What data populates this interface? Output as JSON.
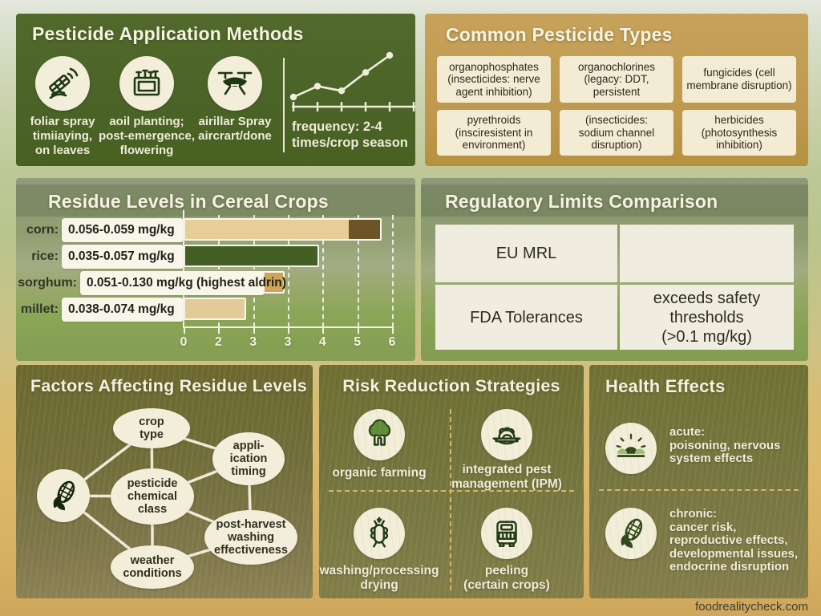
{
  "watermark": "foodrealitycheck.com",
  "application_methods": {
    "title": "Pesticide Application Methods",
    "methods": [
      {
        "icon": "foliar-spray-icon",
        "label": "foliar spray\ntimiiaying,\non leaves"
      },
      {
        "icon": "soil-planter-icon",
        "label": "aoil planting;\npost-emergence,\nflowering"
      },
      {
        "icon": "drone-icon",
        "label": "airillar Spray\naircrart/done"
      }
    ],
    "frequency_chart": {
      "type": "line",
      "caption": "frequency: 2-4\ntimes/crop season",
      "points": [
        [
          0,
          1
        ],
        [
          0.25,
          0.74
        ],
        [
          0.5,
          0.85
        ],
        [
          0.75,
          0.41
        ],
        [
          1,
          0
        ]
      ],
      "axis_tick_count": 6
    }
  },
  "pesticide_types": {
    "title": "Common Pesticide Types",
    "boxes": [
      "organophosphates\n(insecticides: nerve\nagent inhibition)",
      "organochlorines\n(legacy: DDT,\npersistent",
      "fungicides (cell\nmembrane disruption)",
      "pyrethroids\n(insciresistent in\nenvironment)",
      "(insecticides:\nsodium channel\ndisruption)",
      "herbicides\n(photosynthesis\ninhibition)"
    ]
  },
  "residue_levels": {
    "title": "Residue Levels in Cereal Crops",
    "chart_data": {
      "type": "bar",
      "orientation": "horizontal",
      "title": "Residue Levels in Cereal Crops",
      "categories": [
        "corn",
        "rice",
        "sorghum",
        "millet"
      ],
      "value_labels": [
        "0.056-0.059 mg/kg",
        "0.035-0.057 mg/kg",
        "0.051-0.130 mg/kg (highest aldrin)",
        "0.038-0.074 mg/kg"
      ],
      "values": [
        5.7,
        3.9,
        2.9,
        1.8
      ],
      "axis_range": [
        0,
        6
      ],
      "axis_tick_labels": [
        "0",
        "2",
        "3",
        "3",
        "4",
        "5",
        "6"
      ],
      "grid": "dashed-vertical",
      "bar_colors": [
        "#e7cd96",
        "#435f23",
        "#d0a559",
        "#e2cb96"
      ],
      "corn_dark_tip": {
        "start": 4.8,
        "color": "#6b5426"
      }
    }
  },
  "regulatory_limits": {
    "title": "Regulatory Limits Comparison",
    "rows": [
      [
        "EU MRL",
        ""
      ],
      [
        "FDA Tolerances",
        "exceeds safety\nthresholds\n(>0.1 mg/kg)"
      ]
    ]
  },
  "factors": {
    "title": "Factors Affecting Residue Levels",
    "hub_icon": "corn-icon",
    "nodes": [
      "crop\ntype",
      "appli-\nication\ntiming",
      "pesticide\nchemical\nclass",
      "post-harvest\nwashing\neffectiveness",
      "weather\nconditions"
    ]
  },
  "risk_reduction": {
    "title": "Risk Reduction Strategies",
    "items": [
      {
        "icon": "tree-icon",
        "label": "organic farming"
      },
      {
        "icon": "covered-dish-icon",
        "label": "integrated pest\nmanagement (IPM)"
      },
      {
        "icon": "bug-icon",
        "label": "washing/processing\ndrying"
      },
      {
        "icon": "truck-icon",
        "label": "peeling\n(certain crops)"
      }
    ]
  },
  "health_effects": {
    "title": "Health Effects",
    "entries": [
      {
        "icon": "sunrise-icon",
        "label": "acute:\npoisoning, nervous\nsystem effects"
      },
      {
        "icon": "corn-cob-icon",
        "label": "chronic:\ncancer risk,\nreproductive effects,\ndevelopmental issues,\nendocrine disruption"
      }
    ]
  },
  "colors": {
    "panel_green": "#4a6226",
    "panel_tan": "#c7a25a",
    "cream_box": "#f3ebd3",
    "overlay_green": "#84a052",
    "olive_panel": "#6e7133",
    "dashed_divider": "#d9b568",
    "icon_ink": "#203812"
  }
}
